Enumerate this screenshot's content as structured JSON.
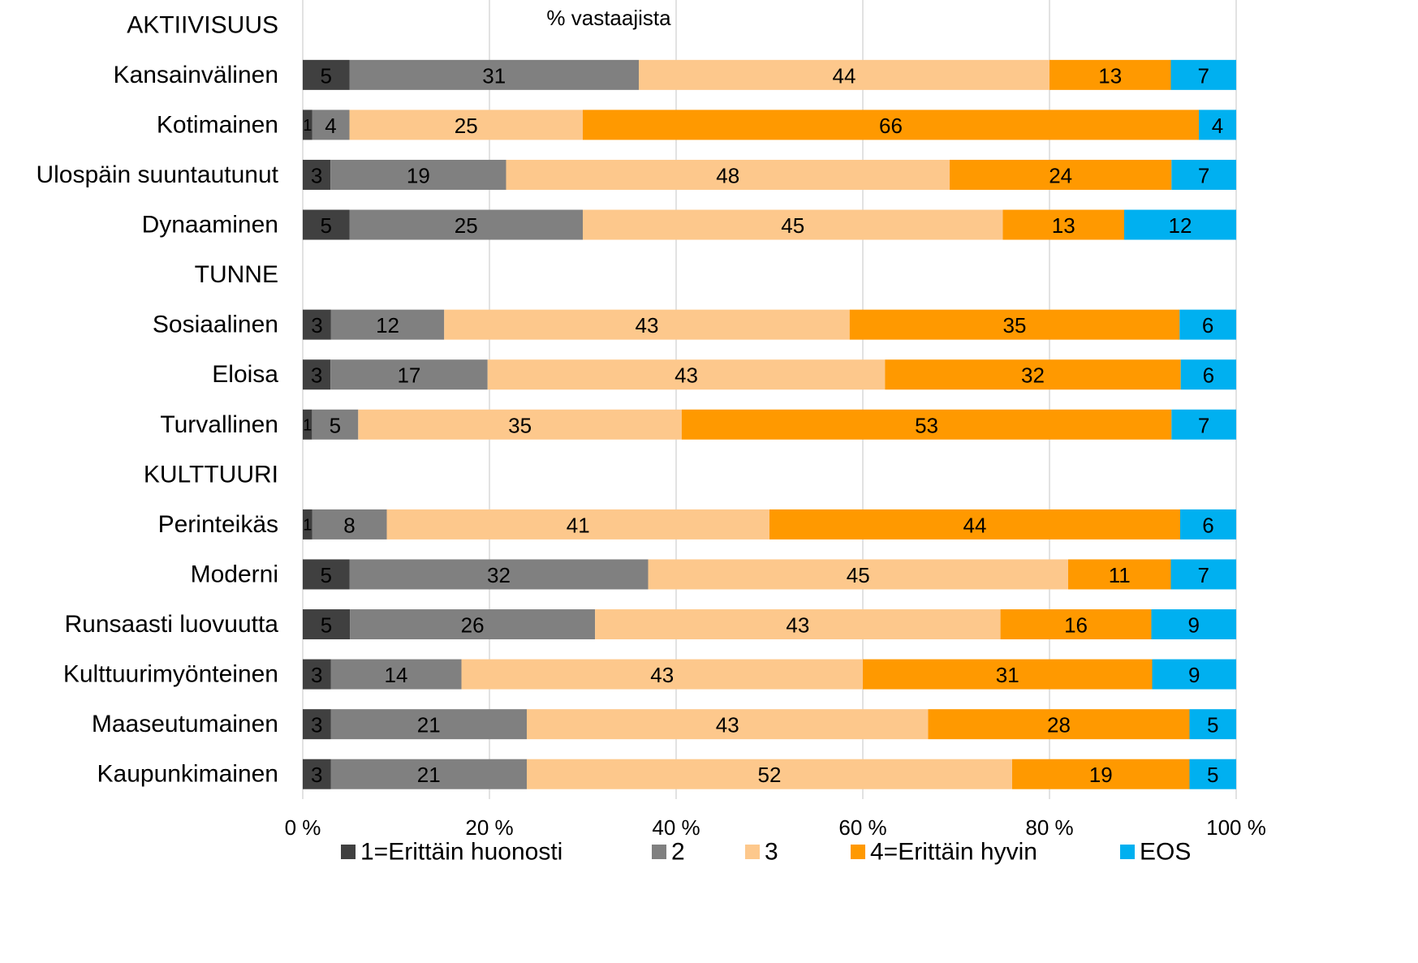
{
  "chart_data": {
    "type": "bar",
    "orientation": "horizontal",
    "stacking": "percent",
    "x_label": "% vastaajista",
    "categories": [
      "AKTIIVISUUS",
      "Kansainvälinen",
      "Kotimainen",
      "Ulospäin suuntautunut",
      "Dynaaminen",
      "TUNNE",
      "Sosiaalinen",
      "Eloisa",
      "Turvallinen",
      "KULTTUURI",
      "Perinteikäs",
      "Moderni",
      "Runsaasti luovuutta",
      "Kulttuurimyönteinen",
      "Maaseutumainen",
      "Kaupunkimainen"
    ],
    "series": [
      {
        "name": "1=Erittäin huonosti",
        "color": "#404040",
        "label_color": "#ffffff",
        "values": [
          null,
          5,
          1,
          3,
          5,
          null,
          3,
          3,
          1,
          null,
          1,
          5,
          5,
          3,
          3,
          3
        ]
      },
      {
        "name": "2",
        "color": "#808080",
        "label_color": "#000000",
        "values": [
          null,
          31,
          4,
          19,
          25,
          null,
          12,
          17,
          5,
          null,
          8,
          32,
          26,
          14,
          21,
          21
        ]
      },
      {
        "name": "3",
        "color": "#fdc88c",
        "label_color": "#000000",
        "values": [
          null,
          44,
          25,
          48,
          45,
          null,
          43,
          43,
          35,
          null,
          41,
          45,
          43,
          43,
          43,
          52
        ]
      },
      {
        "name": "4=Erittäin hyvin",
        "color": "#ff9900",
        "label_color": "#000000",
        "values": [
          null,
          13,
          66,
          24,
          13,
          null,
          35,
          32,
          53,
          null,
          44,
          11,
          16,
          31,
          28,
          19
        ]
      },
      {
        "name": "EOS",
        "color": "#00b0f0",
        "label_color": "#000000",
        "values": [
          null,
          7,
          4,
          7,
          12,
          null,
          6,
          6,
          7,
          null,
          6,
          7,
          9,
          9,
          5,
          5
        ]
      }
    ],
    "xlim": [
      0,
      100
    ],
    "xticks": [
      {
        "value": 0,
        "label": "0 %"
      },
      {
        "value": 20,
        "label": "20 %"
      },
      {
        "value": 40,
        "label": "40 %"
      },
      {
        "value": 60,
        "label": "60 %"
      },
      {
        "value": 80,
        "label": "80 %"
      },
      {
        "value": 100,
        "label": "100 %"
      }
    ],
    "grid": true,
    "legend": "bottom"
  }
}
